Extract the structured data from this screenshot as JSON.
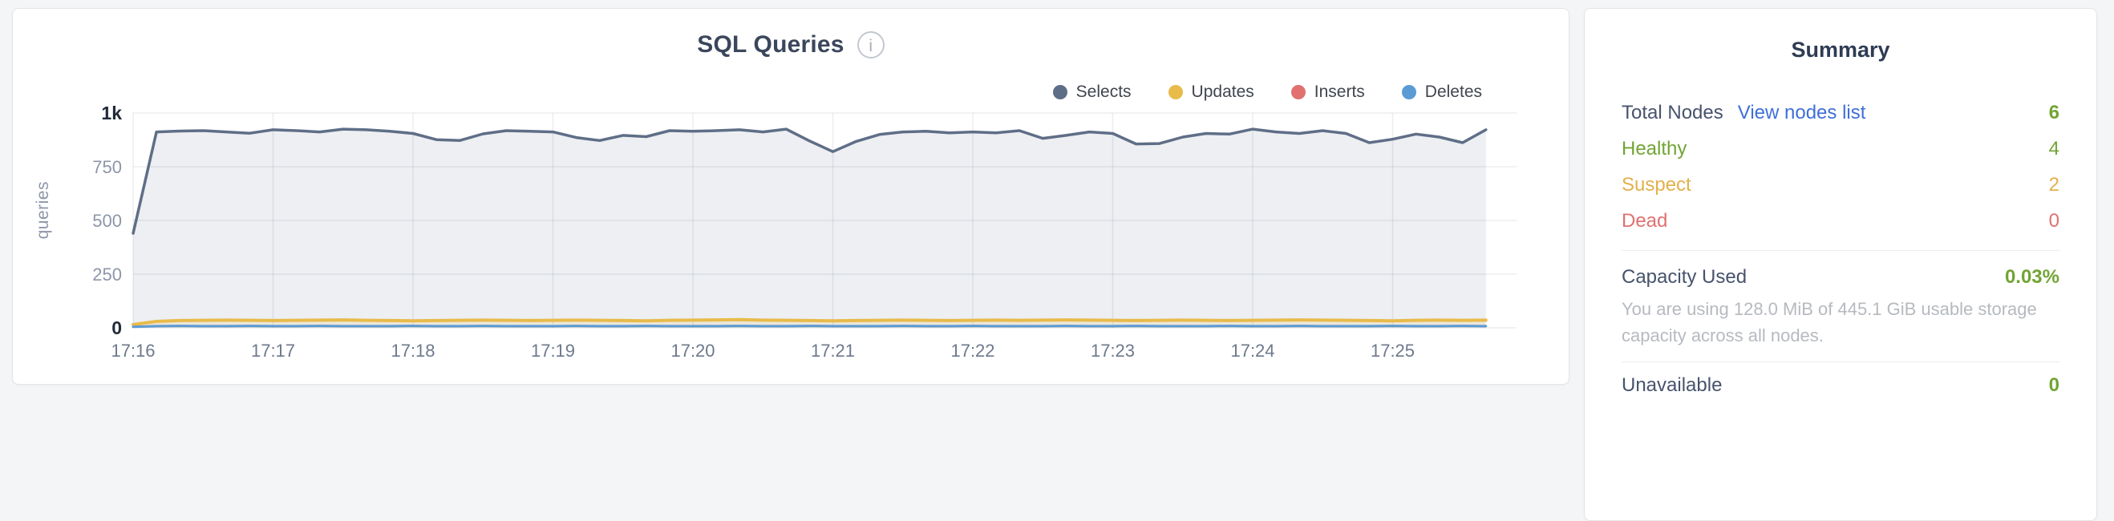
{
  "page": {
    "background": "#f4f5f6"
  },
  "chart_card": {
    "title": "SQL Queries",
    "info_glyph": "i",
    "y_axis_title": "queries"
  },
  "chart_data": {
    "type": "area",
    "title": "SQL Queries",
    "xlabel": "",
    "ylabel": "queries",
    "ylim": [
      0,
      1000
    ],
    "grid": true,
    "legend_position": "top-right",
    "x_ticks": [
      "17:16",
      "17:17",
      "17:18",
      "17:19",
      "17:20",
      "17:21",
      "17:22",
      "17:23",
      "17:24",
      "17:25"
    ],
    "seconds_per_tick": 60,
    "x_interval_seconds": 10,
    "y_ticks": [
      {
        "label": "0",
        "value": 0,
        "emphasis": true
      },
      {
        "label": "250",
        "value": 250,
        "emphasis": false
      },
      {
        "label": "500",
        "value": 500,
        "emphasis": false
      },
      {
        "label": "750",
        "value": 750,
        "emphasis": false
      },
      {
        "label": "1k",
        "value": 1000,
        "emphasis": true
      }
    ],
    "axis_colors": {
      "tick": "#8d96a8",
      "tick_emphasis": "#222b38",
      "x_tick": "#6e798c",
      "grid": "rgba(70,80,100,0.10)"
    },
    "series": [
      {
        "name": "Selects",
        "color": "#5f6e87",
        "fill": "rgba(95,110,135,0.11)",
        "width": 3.5,
        "values": [
          440,
          912,
          916,
          918,
          912,
          906,
          922,
          918,
          912,
          925,
          922,
          915,
          905,
          876,
          872,
          903,
          918,
          915,
          912,
          886,
          872,
          896,
          890,
          918,
          915,
          918,
          922,
          912,
          925,
          870,
          820,
          868,
          900,
          912,
          915,
          908,
          912,
          908,
          918,
          882,
          896,
          912,
          905,
          856,
          858,
          888,
          905,
          902,
          925,
          912,
          905,
          918,
          905,
          862,
          878,
          902,
          888,
          862,
          922
        ]
      },
      {
        "name": "Updates",
        "color": "#e8bb4a",
        "fill": "rgba(232,187,74,0.16)",
        "width": 4,
        "values": [
          15,
          30,
          34,
          35,
          36,
          35,
          34,
          35,
          36,
          37,
          35,
          34,
          33,
          34,
          35,
          36,
          35,
          34,
          35,
          36,
          35,
          34,
          33,
          35,
          36,
          37,
          38,
          36,
          35,
          34,
          33,
          34,
          35,
          36,
          35,
          34,
          35,
          36,
          35,
          36,
          37,
          36,
          35,
          34,
          35,
          36,
          35,
          34,
          35,
          36,
          37,
          36,
          35,
          34,
          33,
          35,
          36,
          35,
          36
        ]
      },
      {
        "name": "Inserts",
        "color": "#e0716f",
        "fill": "none",
        "width": 2.5,
        "values": [
          5,
          8,
          9,
          8,
          8,
          9,
          8,
          8,
          9,
          8,
          8,
          8,
          9,
          8,
          8,
          9,
          8,
          8,
          8,
          9,
          8,
          8,
          9,
          8,
          8,
          8,
          9,
          8,
          8,
          9,
          8,
          8,
          8,
          9,
          8,
          8,
          9,
          8,
          8,
          8,
          9,
          8,
          8,
          9,
          8,
          8,
          8,
          9,
          8,
          8,
          9,
          8,
          8,
          8,
          9,
          8,
          8,
          9,
          8
        ]
      },
      {
        "name": "Deletes",
        "color": "#5b9bd5",
        "fill": "none",
        "width": 3,
        "values": [
          5,
          8,
          9,
          8,
          8,
          9,
          8,
          8,
          9,
          8,
          8,
          8,
          9,
          8,
          8,
          9,
          8,
          8,
          8,
          9,
          8,
          8,
          9,
          8,
          8,
          8,
          9,
          8,
          8,
          9,
          8,
          8,
          8,
          9,
          8,
          8,
          9,
          8,
          8,
          8,
          9,
          8,
          8,
          9,
          8,
          8,
          8,
          9,
          8,
          8,
          9,
          8,
          8,
          8,
          9,
          8,
          8,
          9,
          8
        ]
      }
    ]
  },
  "summary": {
    "title": "Summary",
    "node_rows": [
      {
        "label": "Total Nodes",
        "link": "View nodes list",
        "value": "6",
        "label_color": "#47536d",
        "link_color": "#3e6fd9",
        "value_color": "#72a433",
        "value_bold": true
      },
      {
        "label": "Healthy",
        "value": "4",
        "label_color": "#72a433",
        "value_color": "#72a433",
        "value_bold": false
      },
      {
        "label": "Suspect",
        "value": "2",
        "label_color": "#e3b04b",
        "value_color": "#e3b04b",
        "value_bold": false
      },
      {
        "label": "Dead",
        "value": "0",
        "label_color": "#e0716f",
        "value_color": "#e0716f",
        "value_bold": false
      }
    ],
    "capacity": {
      "label": "Capacity Used",
      "value": "0.03%",
      "value_color": "#72a433",
      "description": "You are using 128.0 MiB of 445.1 GiB usable storage capacity across all nodes."
    },
    "partial_row": {
      "label": "Unavailable",
      "value": "0",
      "label_color": "#47536d",
      "value_color": "#72a433"
    }
  }
}
